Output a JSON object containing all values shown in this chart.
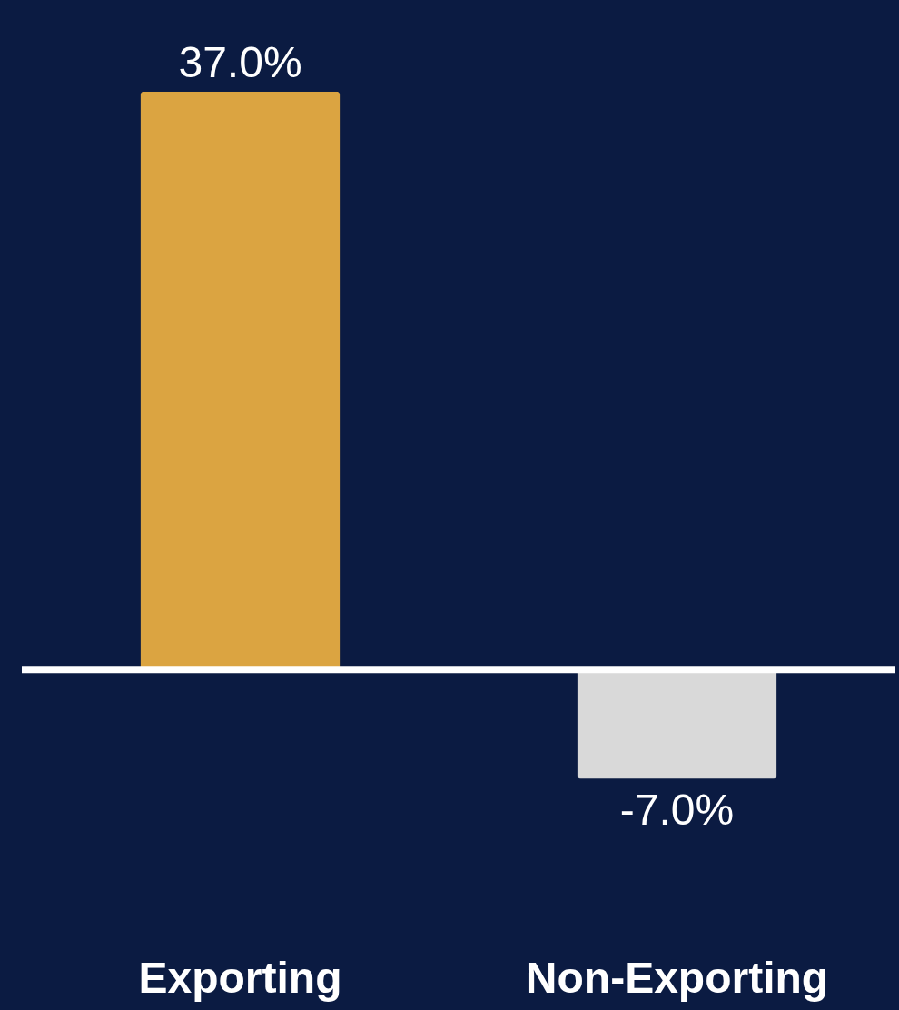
{
  "chart_data": {
    "type": "bar",
    "categories": [
      "Exporting",
      "Non-Exporting"
    ],
    "values": [
      37.0,
      -7.0
    ],
    "colors": [
      "#dba441",
      "#d9d9d9"
    ],
    "value_labels": [
      "37.0%",
      "-7.0%"
    ],
    "ref_lines": [
      {
        "axis": "y",
        "value": 0,
        "color": "#ffffff"
      }
    ],
    "grid": false
  }
}
